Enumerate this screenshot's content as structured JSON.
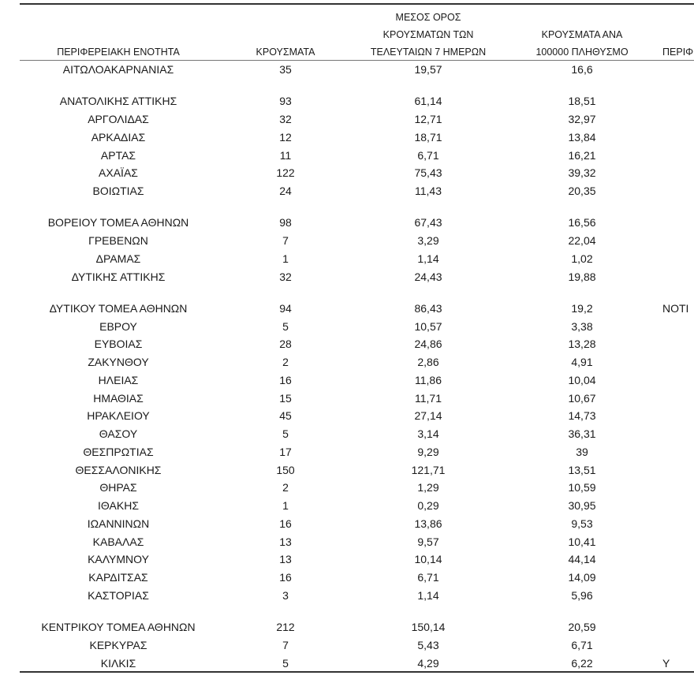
{
  "table": {
    "header": [
      [
        "ΠΕΡΙΦΕΡΕΙΑΚΗ ΕΝΟΤΗΤΑ"
      ],
      [
        "ΚΡΟΥΣΜΑΤΑ"
      ],
      [
        "ΜΕΣΟΣ ΟΡΟΣ",
        "ΚΡΟΥΣΜΑΤΩΝ ΤΩΝ",
        "ΤΕΛΕΥΤΑΙΩΝ 7 ΗΜΕΡΩΝ"
      ],
      [
        "ΚΡΟΥΣΜΑΤΑ ΑΝΑ",
        "100000 ΠΛΗΘΥΣΜΟ"
      ],
      [
        "ΠΕΡΙΦ"
      ]
    ],
    "groups": [
      {
        "rows": [
          [
            "ΑΙΤΩΛΟΑΚΑΡΝΑΝΙΑΣ",
            "35",
            "19,57",
            "16,6"
          ]
        ]
      },
      {
        "rows": [
          [
            "ΑΝΑΤΟΛΙΚΗΣ ΑΤΤΙΚΗΣ",
            "93",
            "61,14",
            "18,51"
          ],
          [
            "ΑΡΓΟΛΙΔΑΣ",
            "32",
            "12,71",
            "32,97"
          ],
          [
            "ΑΡΚΑΔΙΑΣ",
            "12",
            "18,71",
            "13,84"
          ],
          [
            "ΑΡΤΑΣ",
            "11",
            "6,71",
            "16,21"
          ],
          [
            "ΑΧΑΪΑΣ",
            "122",
            "75,43",
            "39,32"
          ],
          [
            "ΒΟΙΩΤΙΑΣ",
            "24",
            "11,43",
            "20,35"
          ]
        ]
      },
      {
        "rows": [
          [
            "ΒΟΡΕΙΟΥ ΤΟΜΕΑ ΑΘΗΝΩΝ",
            "98",
            "67,43",
            "16,56"
          ],
          [
            "ΓΡΕΒΕΝΩΝ",
            "7",
            "3,29",
            "22,04"
          ],
          [
            "ΔΡΑΜΑΣ",
            "1",
            "1,14",
            "1,02"
          ],
          [
            "ΔΥΤΙΚΗΣ ΑΤΤΙΚΗΣ",
            "32",
            "24,43",
            "19,88"
          ]
        ]
      },
      {
        "rows": [
          [
            "ΔΥΤΙΚΟΥ ΤΟΜΕΑ ΑΘΗΝΩΝ",
            "94",
            "86,43",
            "19,2",
            "ΝΟΤΙ"
          ],
          [
            "ΕΒΡΟΥ",
            "5",
            "10,57",
            "3,38"
          ],
          [
            "ΕΥΒΟΙΑΣ",
            "28",
            "24,86",
            "13,28"
          ],
          [
            "ΖΑΚΥΝΘΟΥ",
            "2",
            "2,86",
            "4,91"
          ],
          [
            "ΗΛΕΙΑΣ",
            "16",
            "11,86",
            "10,04"
          ],
          [
            "ΗΜΑΘΙΑΣ",
            "15",
            "11,71",
            "10,67"
          ],
          [
            "ΗΡΑΚΛΕΙΟΥ",
            "45",
            "27,14",
            "14,73"
          ],
          [
            "ΘΑΣΟΥ",
            "5",
            "3,14",
            "36,31"
          ],
          [
            "ΘΕΣΠΡΩΤΙΑΣ",
            "17",
            "9,29",
            "39"
          ],
          [
            "ΘΕΣΣΑΛΟΝΙΚΗΣ",
            "150",
            "121,71",
            "13,51"
          ],
          [
            "ΘΗΡΑΣ",
            "2",
            "1,29",
            "10,59"
          ],
          [
            "ΙΘΑΚΗΣ",
            "1",
            "0,29",
            "30,95"
          ],
          [
            "ΙΩΑΝΝΙΝΩΝ",
            "16",
            "13,86",
            "9,53"
          ],
          [
            "ΚΑΒΑΛΑΣ",
            "13",
            "9,57",
            "10,41"
          ],
          [
            "ΚΑΛΥΜΝΟΥ",
            "13",
            "10,14",
            "44,14"
          ],
          [
            "ΚΑΡΔΙΤΣΑΣ",
            "16",
            "6,71",
            "14,09"
          ],
          [
            "ΚΑΣΤΟΡΙΑΣ",
            "3",
            "1,14",
            "5,96"
          ]
        ]
      },
      {
        "rows": [
          [
            "ΚΕΝΤΡΙΚΟΥ ΤΟΜΕΑ ΑΘΗΝΩΝ",
            "212",
            "150,14",
            "20,59"
          ],
          [
            "ΚΕΡΚΥΡΑΣ",
            "7",
            "5,43",
            "6,71"
          ],
          [
            "ΚΙΛΚΙΣ",
            "5",
            "4,29",
            "6,22",
            "Υ"
          ]
        ]
      }
    ]
  }
}
